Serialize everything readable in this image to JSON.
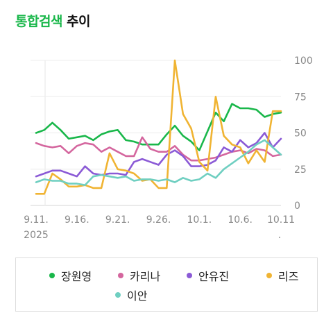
{
  "title": {
    "accent": "통합검색",
    "rest": "추이"
  },
  "chart_data": {
    "type": "line",
    "x_labels": [
      "9.11.",
      "9.16.",
      "9.21.",
      "9.26.",
      "10.1.",
      "10.6.",
      "10.11"
    ],
    "x_year_label": "2025",
    "x_trailing_mark": ".",
    "y_ticks": [
      0,
      25,
      50,
      75,
      100
    ],
    "ylim": [
      0,
      100
    ],
    "grid": true,
    "legend_position": "bottom",
    "x": [
      "9.11",
      "9.12",
      "9.13",
      "9.14",
      "9.15",
      "9.16",
      "9.17",
      "9.18",
      "9.19",
      "9.20",
      "9.21",
      "9.22",
      "9.23",
      "9.24",
      "9.25",
      "9.26",
      "9.27",
      "9.28",
      "9.29",
      "9.30",
      "10.1",
      "10.2",
      "10.3",
      "10.4",
      "10.5",
      "10.6",
      "10.7",
      "10.8",
      "10.9",
      "10.10",
      "10.11"
    ],
    "series": [
      {
        "name": "장원영",
        "color": "#19b74a",
        "values": [
          50,
          52,
          57,
          52,
          46,
          47,
          48,
          45,
          49,
          51,
          52,
          45,
          44,
          42,
          42,
          42,
          49,
          55,
          48,
          44,
          38,
          51,
          64,
          58,
          70,
          67,
          67,
          66,
          61,
          63,
          64
        ]
      },
      {
        "name": "카리나",
        "color": "#d4669e",
        "values": [
          43,
          41,
          40,
          41,
          36,
          41,
          43,
          42,
          37,
          40,
          37,
          34,
          34,
          47,
          39,
          37,
          37,
          41,
          35,
          31,
          31,
          32,
          33,
          35,
          37,
          38,
          36,
          39,
          38,
          34,
          35
        ]
      },
      {
        "name": "안유진",
        "color": "#8b5ad6",
        "values": [
          20,
          22,
          24,
          24,
          22,
          20,
          27,
          22,
          21,
          22,
          22,
          21,
          30,
          32,
          30,
          28,
          35,
          38,
          34,
          27,
          27,
          28,
          31,
          40,
          37,
          45,
          40,
          43,
          50,
          40,
          46
        ]
      },
      {
        "name": "리즈",
        "color": "#f0b433",
        "values": [
          8,
          8,
          22,
          18,
          13,
          13,
          14,
          12,
          12,
          36,
          25,
          24,
          22,
          17,
          18,
          12,
          12,
          100,
          63,
          53,
          30,
          24,
          75,
          48,
          42,
          40,
          29,
          38,
          30,
          65,
          65
        ]
      },
      {
        "name": "이안",
        "color": "#6fcfc1",
        "values": [
          16,
          18,
          17,
          17,
          15,
          15,
          14,
          20,
          21,
          20,
          19,
          20,
          17,
          18,
          18,
          17,
          18,
          16,
          19,
          17,
          18,
          22,
          19,
          25,
          29,
          33,
          37,
          42,
          45,
          40,
          35
        ]
      }
    ]
  }
}
